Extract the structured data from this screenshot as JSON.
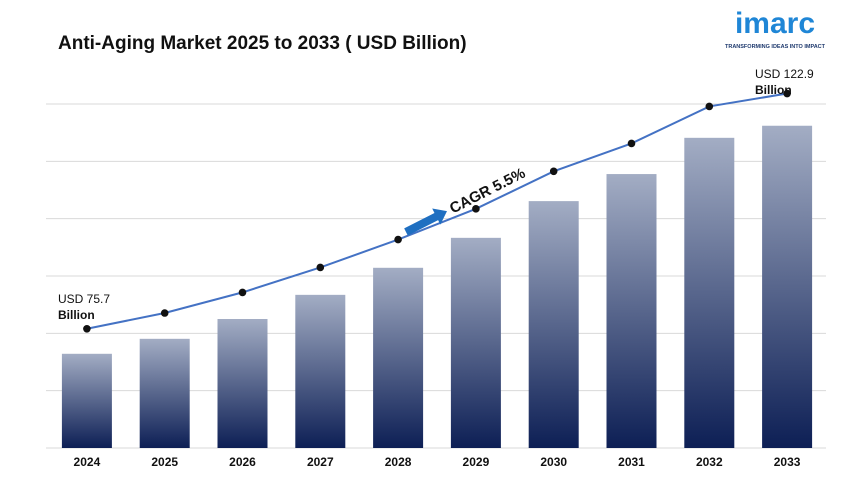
{
  "chart_data": {
    "type": "bar",
    "title": "Anti-Aging Market 2025 to 2033 ( USD Billion)",
    "categories": [
      "2024",
      "2025",
      "2026",
      "2027",
      "2028",
      "2029",
      "2030",
      "2031",
      "2032",
      "2033"
    ],
    "values": [
      75.7,
      78.8,
      82.9,
      87.9,
      93.5,
      99.7,
      107.3,
      112.9,
      120.4,
      122.9
    ],
    "ylim": [
      56.2,
      127.4
    ],
    "grid": true,
    "color": "#0d1f55",
    "line_color": "#4472c4",
    "annotations": [
      [
        "USD 75.7",
        "Billion"
      ],
      [
        "USD 122.9",
        "Billion"
      ]
    ],
    "cagr_label": "CAGR 5.5%",
    "logo": {
      "name": "imarc",
      "tagline": "TRANSFORMING IDEAS INTO IMPACT"
    }
  }
}
